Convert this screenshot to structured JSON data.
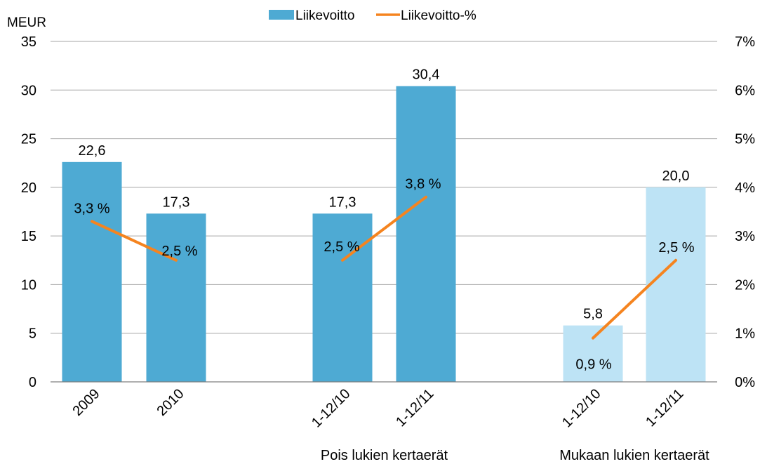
{
  "chart_data": {
    "type": "bar",
    "y_unit_label": "MEUR",
    "categories": [
      "2009",
      "2010",
      "1-12/10",
      "1-12/11",
      "1-12/10",
      "1-12/11"
    ],
    "category_groups": [
      {
        "label": "",
        "indices": [
          0,
          1
        ]
      },
      {
        "label": "Pois lukien kertaerät",
        "indices": [
          2,
          3
        ]
      },
      {
        "label": "Mukaan lukien kertaerät",
        "indices": [
          4,
          5
        ]
      }
    ],
    "series": [
      {
        "name": "Liikevoitto",
        "type": "bar",
        "axis": "left",
        "values": [
          22.6,
          17.3,
          17.3,
          30.4,
          5.8,
          20.0
        ],
        "labels": [
          "22,6",
          "17,3",
          "17,3",
          "30,4",
          "5,8",
          "20,0"
        ],
        "colors": [
          "#4EAAD3",
          "#4EAAD3",
          "#4EAAD3",
          "#4EAAD3",
          "#BDE3F5",
          "#BDE3F5"
        ],
        "legend_color": "#4EAAD3"
      },
      {
        "name": "Liikevoitto-%",
        "type": "line",
        "axis": "right",
        "values": [
          3.3,
          2.5,
          2.5,
          3.8,
          0.9,
          2.5
        ],
        "labels": [
          "3,3 %",
          "2,5 %",
          "2,5 %",
          "3,8 %",
          "0,9 %",
          "2,5 %"
        ],
        "segments": [
          [
            0,
            1
          ],
          [
            2,
            3
          ],
          [
            4,
            5
          ]
        ],
        "color": "#F5841F"
      }
    ],
    "y_left": {
      "min": 0,
      "max": 35,
      "ticks": [
        "0",
        "5",
        "10",
        "15",
        "20",
        "25",
        "30",
        "35"
      ]
    },
    "y_right": {
      "min": 0,
      "max": 7,
      "ticks": [
        "0%",
        "1%",
        "2%",
        "3%",
        "4%",
        "5%",
        "6%",
        "7%"
      ]
    },
    "grid": true,
    "grid_color": "#A6A6A6",
    "legend_position": "top"
  }
}
